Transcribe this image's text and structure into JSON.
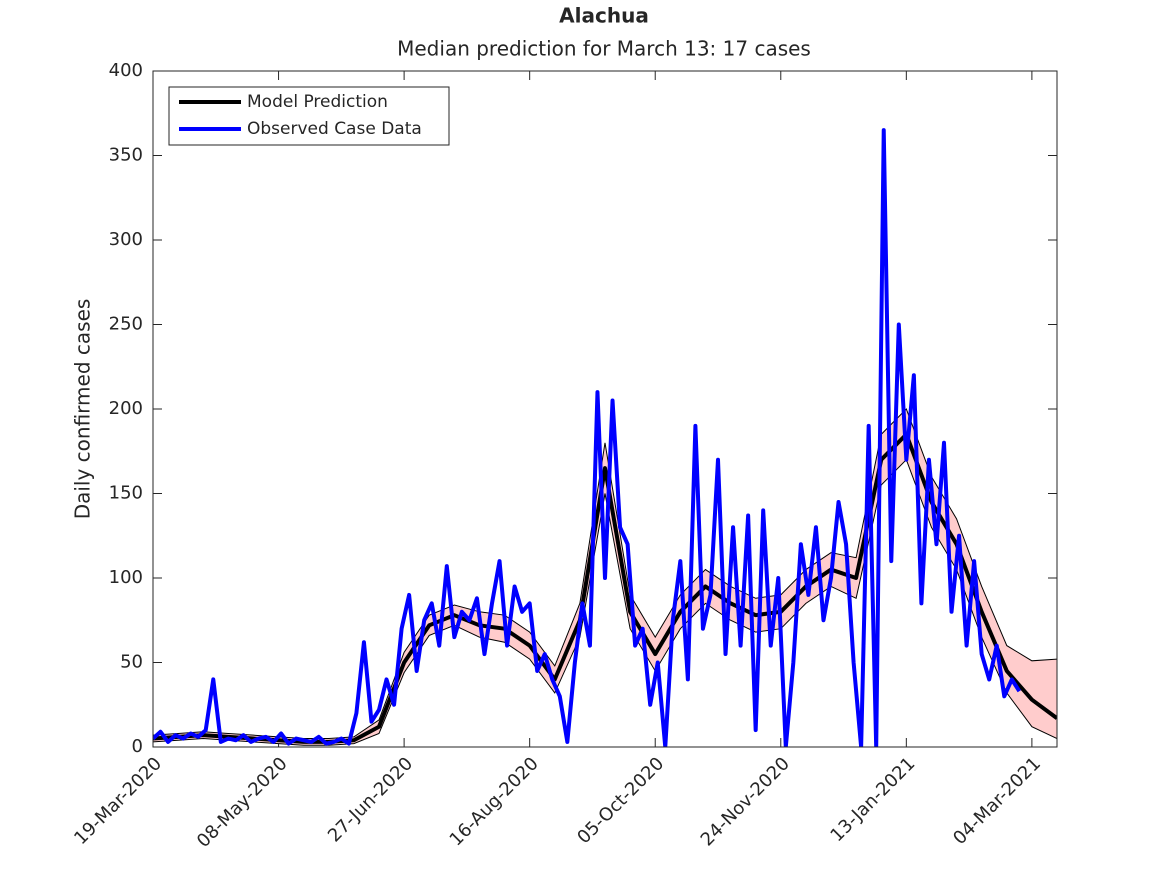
{
  "chart_data": {
    "type": "line",
    "title": "Alachua",
    "subtitle": "Median prediction for March 13: 17 cases",
    "ylabel": "Daily confirmed cases",
    "xlim": [
      "2020-03-19",
      "2021-03-14"
    ],
    "xticks": [
      {
        "value": "2020-03-19",
        "label": "19-Mar-2020"
      },
      {
        "value": "2020-05-08",
        "label": "08-May-2020"
      },
      {
        "value": "2020-06-27",
        "label": "27-Jun-2020"
      },
      {
        "value": "2020-08-16",
        "label": "16-Aug-2020"
      },
      {
        "value": "2020-10-05",
        "label": "05-Oct-2020"
      },
      {
        "value": "2020-11-24",
        "label": "24-Nov-2020"
      },
      {
        "value": "2021-01-13",
        "label": "13-Jan-2021"
      },
      {
        "value": "2021-03-04",
        "label": "04-Mar-2021"
      }
    ],
    "ylim": [
      0,
      400
    ],
    "yticks": [
      0,
      50,
      100,
      150,
      200,
      250,
      300,
      350,
      400
    ],
    "legend": "top-left",
    "band_color": "#ffcccc",
    "series": [
      {
        "name": "Model Prediction",
        "color": "#000000",
        "x": [
          "2020-03-19",
          "2020-03-29",
          "2020-04-08",
          "2020-04-18",
          "2020-04-28",
          "2020-05-08",
          "2020-05-18",
          "2020-05-28",
          "2020-06-07",
          "2020-06-17",
          "2020-06-27",
          "2020-07-07",
          "2020-07-17",
          "2020-07-27",
          "2020-08-06",
          "2020-08-16",
          "2020-08-26",
          "2020-09-05",
          "2020-09-15",
          "2020-09-25",
          "2020-10-05",
          "2020-10-15",
          "2020-10-25",
          "2020-11-04",
          "2020-11-14",
          "2020-11-24",
          "2020-12-04",
          "2020-12-14",
          "2020-12-24",
          "2021-01-03",
          "2021-01-13",
          "2021-01-23",
          "2021-02-02",
          "2021-02-12",
          "2021-02-22",
          "2021-03-04",
          "2021-03-14"
        ],
        "values": [
          5,
          6,
          7,
          6,
          5,
          4,
          3,
          3,
          4,
          12,
          50,
          72,
          78,
          72,
          70,
          60,
          40,
          75,
          165,
          80,
          55,
          80,
          95,
          85,
          78,
          80,
          95,
          105,
          100,
          170,
          185,
          145,
          120,
          80,
          45,
          28,
          17
        ],
        "upper": [
          7,
          8,
          9,
          8,
          7,
          6,
          5,
          5,
          6,
          16,
          56,
          78,
          84,
          80,
          78,
          68,
          48,
          85,
          180,
          90,
          65,
          90,
          105,
          95,
          88,
          90,
          105,
          115,
          112,
          185,
          200,
          160,
          135,
          95,
          60,
          51,
          52
        ],
        "lower": [
          3,
          4,
          5,
          4,
          3,
          2,
          1,
          1,
          2,
          8,
          44,
          66,
          72,
          65,
          62,
          52,
          32,
          65,
          150,
          70,
          45,
          70,
          85,
          75,
          68,
          70,
          85,
          95,
          88,
          155,
          170,
          130,
          105,
          65,
          32,
          12,
          5
        ]
      },
      {
        "name": "Observed Case Data",
        "color": "#0000ff",
        "x": [
          "2020-03-19",
          "2020-03-22",
          "2020-03-25",
          "2020-03-28",
          "2020-03-31",
          "2020-04-03",
          "2020-04-06",
          "2020-04-09",
          "2020-04-12",
          "2020-04-15",
          "2020-04-18",
          "2020-04-21",
          "2020-04-24",
          "2020-04-27",
          "2020-04-30",
          "2020-05-03",
          "2020-05-06",
          "2020-05-09",
          "2020-05-12",
          "2020-05-15",
          "2020-05-18",
          "2020-05-21",
          "2020-05-24",
          "2020-05-27",
          "2020-05-30",
          "2020-06-02",
          "2020-06-05",
          "2020-06-08",
          "2020-06-11",
          "2020-06-14",
          "2020-06-17",
          "2020-06-20",
          "2020-06-23",
          "2020-06-26",
          "2020-06-29",
          "2020-07-02",
          "2020-07-05",
          "2020-07-08",
          "2020-07-11",
          "2020-07-14",
          "2020-07-17",
          "2020-07-20",
          "2020-07-23",
          "2020-07-26",
          "2020-07-29",
          "2020-08-01",
          "2020-08-04",
          "2020-08-07",
          "2020-08-10",
          "2020-08-13",
          "2020-08-16",
          "2020-08-19",
          "2020-08-22",
          "2020-08-25",
          "2020-08-28",
          "2020-08-31",
          "2020-09-03",
          "2020-09-06",
          "2020-09-09",
          "2020-09-12",
          "2020-09-15",
          "2020-09-18",
          "2020-09-21",
          "2020-09-24",
          "2020-09-27",
          "2020-09-30",
          "2020-10-03",
          "2020-10-06",
          "2020-10-09",
          "2020-10-12",
          "2020-10-15",
          "2020-10-18",
          "2020-10-21",
          "2020-10-24",
          "2020-10-27",
          "2020-10-30",
          "2020-11-02",
          "2020-11-05",
          "2020-11-08",
          "2020-11-11",
          "2020-11-14",
          "2020-11-17",
          "2020-11-20",
          "2020-11-23",
          "2020-11-26",
          "2020-11-29",
          "2020-12-02",
          "2020-12-05",
          "2020-12-08",
          "2020-12-11",
          "2020-12-14",
          "2020-12-17",
          "2020-12-20",
          "2020-12-23",
          "2020-12-26",
          "2020-12-29",
          "2021-01-01",
          "2021-01-04",
          "2021-01-07",
          "2021-01-10",
          "2021-01-13",
          "2021-01-16",
          "2021-01-19",
          "2021-01-22",
          "2021-01-25",
          "2021-01-28",
          "2021-01-31",
          "2021-02-03",
          "2021-02-06",
          "2021-02-09",
          "2021-02-12",
          "2021-02-15",
          "2021-02-18",
          "2021-02-21",
          "2021-02-24",
          "2021-02-27"
        ],
        "values": [
          5,
          9,
          3,
          7,
          5,
          8,
          6,
          10,
          40,
          3,
          5,
          4,
          7,
          3,
          5,
          6,
          3,
          8,
          2,
          5,
          4,
          3,
          6,
          2,
          3,
          5,
          2,
          20,
          62,
          15,
          22,
          40,
          25,
          70,
          90,
          45,
          75,
          85,
          60,
          107,
          65,
          80,
          75,
          88,
          55,
          85,
          110,
          60,
          95,
          80,
          85,
          45,
          55,
          40,
          30,
          3,
          50,
          85,
          60,
          210,
          100,
          205,
          130,
          120,
          60,
          70,
          25,
          50,
          0,
          75,
          110,
          40,
          190,
          70,
          90,
          170,
          55,
          130,
          60,
          137,
          10,
          140,
          60,
          100,
          0,
          50,
          120,
          90,
          130,
          75,
          100,
          145,
          120,
          50,
          0,
          190,
          0,
          365,
          110,
          250,
          170,
          220,
          85,
          170,
          120,
          180,
          80,
          125,
          60,
          110,
          55,
          40,
          60,
          30,
          40,
          33
        ]
      }
    ]
  }
}
